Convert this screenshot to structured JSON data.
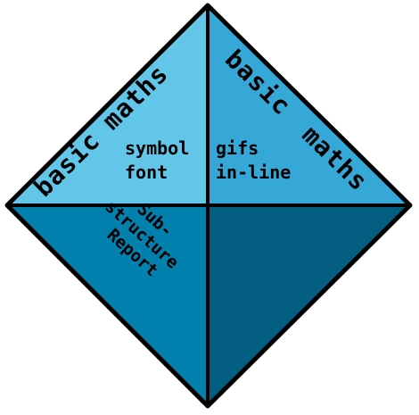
{
  "colors": {
    "top_left": "#62c6e8",
    "top_right": "#36a8d8",
    "bottom_left": "#0280ae",
    "bottom_right": "#035e82",
    "outline": "#000000",
    "background": "#ffffff"
  },
  "quadrants": {
    "top_left": {
      "title": "basic maths",
      "lines": [
        "symbol",
        "font"
      ]
    },
    "top_right": {
      "title_part1": "basic",
      "title_part2": "maths",
      "lines": [
        "gifs",
        "in-line"
      ]
    },
    "bottom_left": {
      "lines": [
        "Sub-",
        "structure",
        "Report"
      ]
    }
  }
}
